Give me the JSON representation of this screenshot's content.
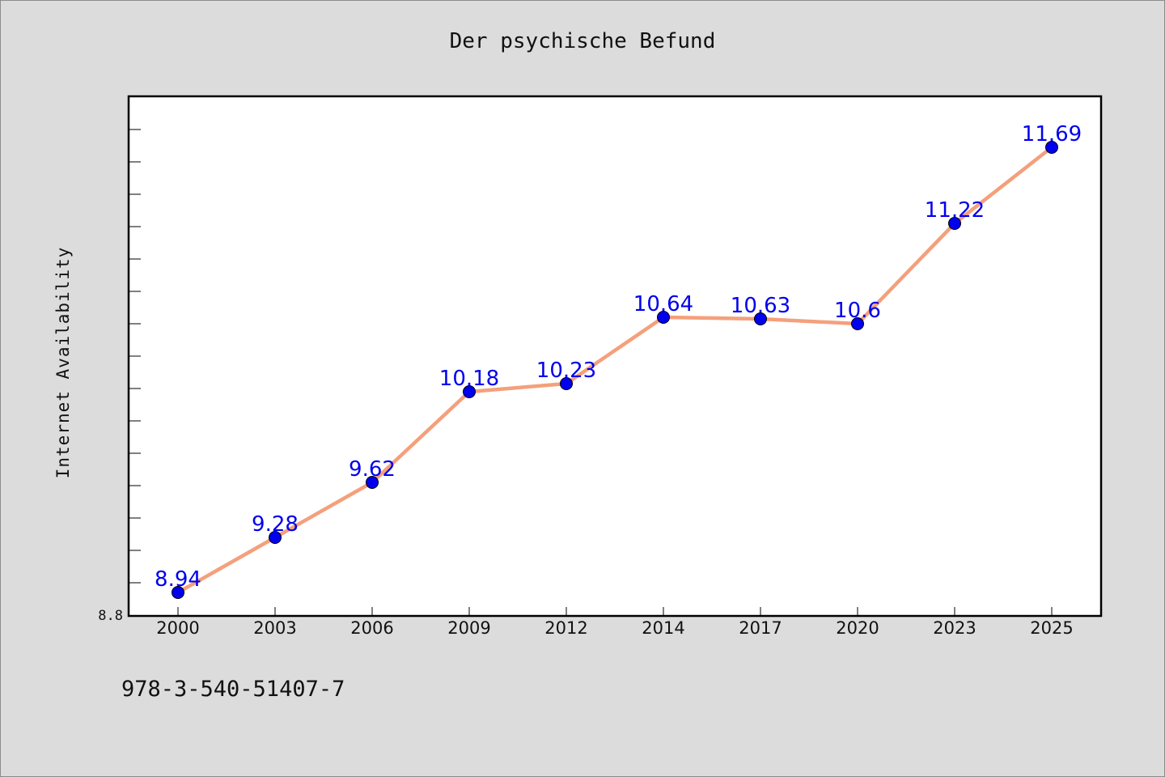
{
  "chart_data": {
    "type": "line",
    "title": "Der psychische Befund",
    "xlabel": "",
    "ylabel": "Internet Availability",
    "categories": [
      "2000",
      "2003",
      "2006",
      "2009",
      "2012",
      "2014",
      "2017",
      "2020",
      "2023",
      "2025"
    ],
    "series": [
      {
        "values": [
          8.94,
          9.28,
          9.62,
          10.18,
          10.23,
          10.64,
          10.63,
          10.6,
          11.22,
          11.69
        ],
        "labels": [
          "8.94",
          "9.28",
          "9.62",
          "10.18",
          "10.23",
          "10.64",
          "10.63",
          "10.6",
          "11.22",
          "11.69"
        ],
        "line_color": "#f4a07c",
        "marker_color": "#0000ee",
        "label_color": "#0000ee"
      }
    ],
    "ylim": [
      8.8,
      12.0
    ],
    "y_tick_labels": [
      "8.8"
    ],
    "y_minor_step": 0.2,
    "grid": false,
    "legend": "none"
  },
  "footer_text": "978-3-540-51407-7"
}
